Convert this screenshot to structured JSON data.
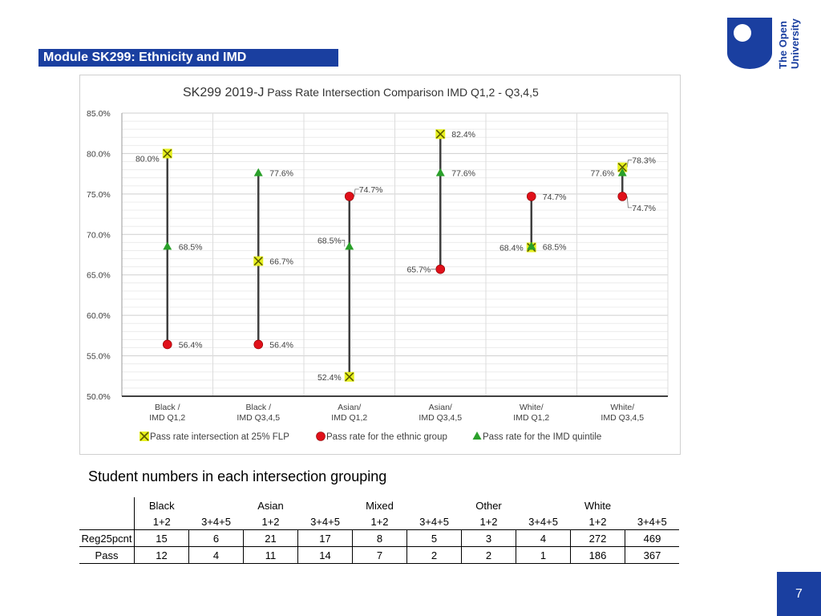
{
  "slide": {
    "title": "Module SK299: Ethnicity and IMD",
    "page_number": "7",
    "logo": {
      "text_line1": "The Open",
      "text_line2": "University",
      "color": "#1a3fa0"
    },
    "accent_color": "#1a3fa0"
  },
  "chart_data": {
    "type": "scatter",
    "title": "SK299 2019-J Pass Rate Intersection Comparison IMD Q1,2 - Q3,4,5",
    "title_parts": {
      "bold": "SK299 2019-J",
      "rest": " Pass Rate Intersection Comparison IMD Q1,2 - Q3,4,5"
    },
    "categories": [
      "Black / IMD Q1,2",
      "Black / IMD Q3,4,5",
      "Asian/ IMD Q1,2",
      "Asian/ IMD Q3,4,5",
      "White/ IMD Q1,2",
      "White/ IMD Q3,4,5"
    ],
    "category_lines": [
      [
        "Black /",
        "IMD Q1,2"
      ],
      [
        "Black /",
        "IMD Q3,4,5"
      ],
      [
        "Asian/",
        "IMD Q1,2"
      ],
      [
        "Asian/",
        "IMD Q3,4,5"
      ],
      [
        "White/",
        "IMD Q1,2"
      ],
      [
        "White/",
        "IMD Q3,4,5"
      ]
    ],
    "ylim": [
      50,
      85
    ],
    "yticks": [
      50,
      55,
      60,
      65,
      70,
      75,
      80,
      85
    ],
    "ytick_labels": [
      "50.0%",
      "55.0%",
      "60.0%",
      "65.0%",
      "70.0%",
      "75.0%",
      "80.0%",
      "85.0%"
    ],
    "grid": true,
    "legend_position": "bottom",
    "series": [
      {
        "name": "Pass rate intersection at 25% FLP",
        "marker": "x-square",
        "color": "#e6f01e",
        "values": [
          80.0,
          66.7,
          52.4,
          82.4,
          68.4,
          78.3
        ],
        "labels": [
          "80.0%",
          "66.7%",
          "52.4%",
          "82.4%",
          "68.4%",
          "78.3%"
        ]
      },
      {
        "name": "Pass rate for the ethnic group",
        "marker": "circle",
        "color": "#e0101a",
        "values": [
          56.4,
          56.4,
          74.7,
          65.7,
          74.7,
          74.7
        ],
        "labels": [
          "56.4%",
          "56.4%",
          "74.7%",
          "65.7%",
          "74.7%",
          "74.7%"
        ]
      },
      {
        "name": "Pass rate for the IMD quintile",
        "marker": "triangle",
        "color": "#2aa02a",
        "values": [
          68.5,
          77.6,
          68.5,
          77.6,
          68.5,
          77.6
        ],
        "labels": [
          "68.5%",
          "77.6%",
          "68.5%",
          "77.6%",
          "68.5%",
          "77.6%"
        ]
      }
    ]
  },
  "student_numbers": {
    "heading": "Student numbers in each intersection grouping",
    "groups": [
      "Black",
      "Asian",
      "Mixed",
      "Other",
      "White"
    ],
    "subheaders": [
      "1+2",
      "3+4+5",
      "1+2",
      "3+4+5",
      "1+2",
      "3+4+5",
      "1+2",
      "3+4+5",
      "1+2",
      "3+4+5"
    ],
    "rows": [
      {
        "label": "Reg25pcnt",
        "values": [
          "15",
          "6",
          "21",
          "17",
          "8",
          "5",
          "3",
          "4",
          "272",
          "469"
        ]
      },
      {
        "label": "Pass",
        "values": [
          "12",
          "4",
          "11",
          "14",
          "7",
          "2",
          "2",
          "1",
          "186",
          "367"
        ]
      }
    ]
  }
}
